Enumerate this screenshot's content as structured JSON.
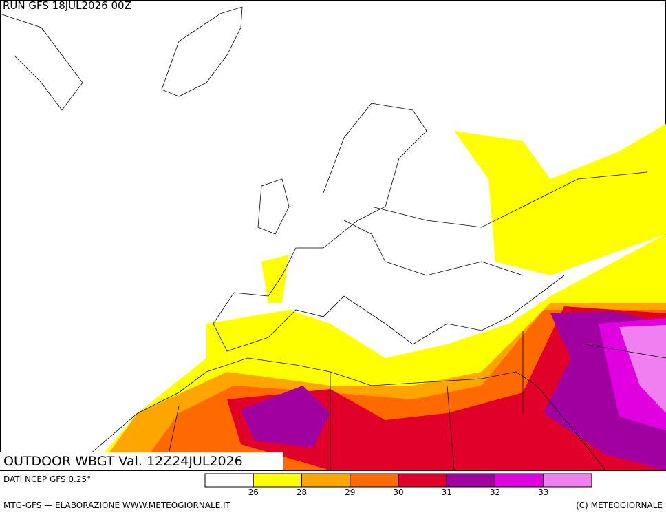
{
  "header": {
    "run": "RUN GFS 18JUL2026 00Z"
  },
  "map": {
    "title": "OUTDOOR WBGT Val. 12Z24JUL2026"
  },
  "legend": {
    "colors": [
      "#ffffff",
      "#ffff00",
      "#ffa500",
      "#ff6a00",
      "#e0002a",
      "#a000a0",
      "#e000e0",
      "#f080f0"
    ],
    "thresholds": [
      26,
      28,
      29,
      30,
      31,
      32,
      33
    ]
  },
  "footer": {
    "source": "DATI NCEP GFS 0.25°",
    "credit": "MTG-GFS — ELABORAZIONE WWW.METEOGIORNALE.IT",
    "copyright": "(C) METEOGIORNALE"
  }
}
